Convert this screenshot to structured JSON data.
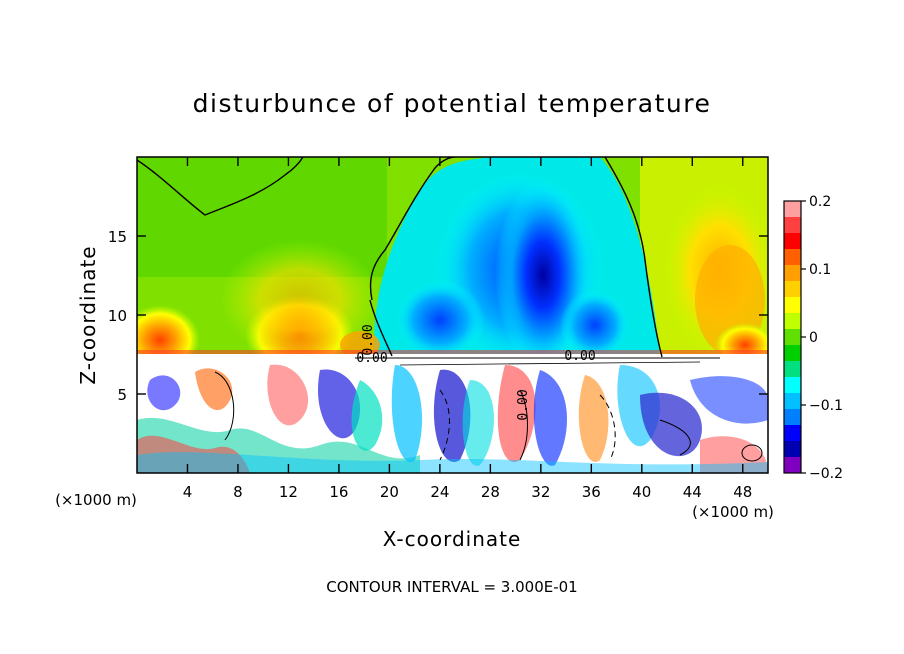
{
  "chart_data": {
    "type": "heatmap",
    "title": "disturbunce of potential temperature",
    "xlabel": "X-coordinate",
    "ylabel": "Z-coordinate",
    "x_unit": "(×1000 m)",
    "z_unit": "(×1000 m)",
    "xlim": [
      0,
      50
    ],
    "ylim": [
      0,
      20
    ],
    "x_ticks": [
      4,
      8,
      12,
      16,
      20,
      24,
      28,
      32,
      36,
      40,
      44,
      48
    ],
    "y_ticks": [
      5,
      10,
      15
    ],
    "colorbar": {
      "range": [
        -0.2,
        0.2
      ],
      "tick_values": [
        0.2,
        0.1,
        0,
        -0.1,
        -0.2
      ],
      "tick_labels": [
        "0.2",
        "0.1",
        "0",
        "−0.1",
        "−0.2"
      ],
      "colors": [
        "#ffa0a0",
        "#ff4040",
        "#ff0000",
        "#ff6000",
        "#ffa000",
        "#ffd000",
        "#ffff00",
        "#c0ff00",
        "#60e000",
        "#00d000",
        "#00e080",
        "#00ffff",
        "#00c0ff",
        "#0080ff",
        "#0000ff",
        "#0000b0",
        "#8000c0"
      ]
    },
    "contour_label": "0.00",
    "contour_interval_text": "CONTOUR INTERVAL = 3.000E-01"
  }
}
